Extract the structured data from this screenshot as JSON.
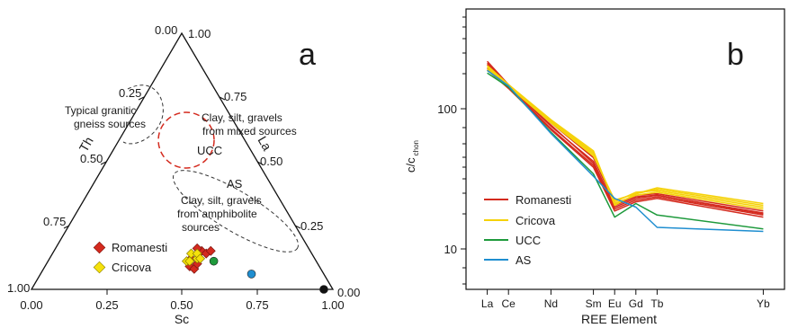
{
  "panel_a": {
    "letter": "a",
    "axis_labels": {
      "th": "Th",
      "la": "La",
      "sc": "Sc"
    },
    "th_ticks": [
      "0.25",
      "0.50",
      "0.75",
      "1.00"
    ],
    "la_ticks": [
      "0.25",
      "0.50",
      "0.75",
      "1.00"
    ],
    "sc_ticks": [
      "0.00",
      "0.25",
      "0.50",
      "0.75",
      "1.00"
    ],
    "apex_top_left": "0.00",
    "bottom_right_zero": "0.00",
    "annotations": {
      "granitic": [
        "Typical granitic",
        "gneiss sources"
      ],
      "mixed": [
        "Clay, silt, gravels",
        "from mixed sources"
      ],
      "amphibolite": [
        "Clay, silt, gravels",
        "from amphibolite",
        "sources"
      ]
    },
    "point_labels": {
      "ucc": "UCC",
      "as": "AS"
    },
    "legend": [
      {
        "label": "Romanesti",
        "color": "#d42a1e"
      },
      {
        "label": "Cricova",
        "color": "#f5e10c"
      }
    ]
  },
  "panel_b": {
    "letter": "b",
    "ylabel": "c/c",
    "ylabel_sub": "chon",
    "xlabel": "REE Element",
    "ytick_labels": [
      "10",
      "100"
    ],
    "legend": [
      {
        "label": "Romanesti",
        "color": "#d42a1e"
      },
      {
        "label": "Cricova",
        "color": "#f5d20a"
      },
      {
        "label": "UCC",
        "color": "#1e9a3c"
      },
      {
        "label": "AS",
        "color": "#1f8ed0"
      }
    ]
  },
  "chart_data": [
    {
      "type": "scatter",
      "subtype": "ternary",
      "components": [
        "Th",
        "La",
        "Sc"
      ],
      "series": [
        {
          "name": "Romanesti",
          "color": "#d42a1e",
          "marker": "diamond",
          "points": [
            {
              "Sc": 0.48,
              "Th": 0.43,
              "La": 0.09
            },
            {
              "Sc": 0.5,
              "Th": 0.42,
              "La": 0.08
            },
            {
              "Sc": 0.47,
              "Th": 0.41,
              "La": 0.12
            },
            {
              "Sc": 0.5,
              "Th": 0.4,
              "La": 0.1
            },
            {
              "Sc": 0.49,
              "Th": 0.36,
              "La": 0.15
            },
            {
              "Sc": 0.47,
              "Th": 0.37,
              "La": 0.16
            },
            {
              "Sc": 0.51,
              "Th": 0.35,
              "La": 0.14
            },
            {
              "Sc": 0.52,
              "Th": 0.33,
              "La": 0.15
            }
          ]
        },
        {
          "name": "Cricova",
          "color": "#f5e10c",
          "marker": "diamond",
          "points": [
            {
              "Sc": 0.46,
              "Th": 0.43,
              "La": 0.11
            },
            {
              "Sc": 0.47,
              "Th": 0.42,
              "La": 0.11
            },
            {
              "Sc": 0.49,
              "Th": 0.39,
              "La": 0.12
            },
            {
              "Sc": 0.46,
              "Th": 0.4,
              "La": 0.14
            },
            {
              "Sc": 0.48,
              "Th": 0.38,
              "La": 0.14
            },
            {
              "Sc": 0.5,
              "Th": 0.38,
              "La": 0.12
            }
          ]
        },
        {
          "name": "UCC",
          "color": "#1e9a3c",
          "marker": "octagon",
          "points": [
            {
              "Sc": 0.55,
              "Th": 0.34,
              "La": 0.11
            }
          ]
        },
        {
          "name": "AS",
          "color": "#1f8ed0",
          "marker": "octagon",
          "points": [
            {
              "Sc": 0.7,
              "Th": 0.24,
              "La": 0.06
            }
          ]
        },
        {
          "name": "",
          "color": "#111111",
          "marker": "octagon",
          "points": [
            {
              "Sc": 0.97,
              "Th": 0.03,
              "La": 0.0
            }
          ]
        }
      ],
      "regions": [
        {
          "label": "Typical granitic gneiss sources",
          "style": "dashed",
          "center": {
            "Sc": 0.35,
            "Th": 0.43,
            "La": 0.22
          }
        },
        {
          "label": "Clay, silt, gravels from mixed sources",
          "style": "dashed circle",
          "color": "#d42a1e",
          "center": {
            "Sc": 0.51,
            "Th": 0.37,
            "La": 0.12
          }
        },
        {
          "label": "Clay, silt, gravels from amphibolite sources",
          "style": "dashed",
          "center": {
            "Sc": 0.72,
            "Th": 0.19,
            "La": 0.09
          }
        }
      ]
    },
    {
      "type": "line",
      "y_scale": "log",
      "ylim": [
        5.6,
        330
      ],
      "categories": [
        "La",
        "Ce",
        "Nd",
        "Sm",
        "Eu",
        "Gd",
        "Tb",
        "Yb"
      ],
      "x": [
        57,
        58,
        60,
        62,
        63,
        64,
        65,
        70
      ],
      "series": [
        {
          "name": "Romanesti",
          "color": "#d42a1e",
          "values": [
            150,
            108,
            60,
            36,
            18.5,
            21,
            22,
            17
          ]
        },
        {
          "name": "Romanesti",
          "color": "#d42a1e",
          "values": [
            140,
            106,
            58,
            34,
            18,
            20.5,
            21.5,
            16.5
          ]
        },
        {
          "name": "Romanesti",
          "color": "#d42a1e",
          "values": [
            154,
            110,
            63,
            38,
            19.5,
            22,
            22.5,
            17.5
          ]
        },
        {
          "name": "Romanesti",
          "color": "#d42a1e",
          "values": [
            136,
            104,
            57,
            33,
            17.5,
            20,
            21,
            16
          ]
        },
        {
          "name": "Romanesti",
          "color": "#d42a1e",
          "values": [
            147,
            107,
            61,
            35,
            19,
            21.5,
            22,
            16.8
          ]
        },
        {
          "name": "Cricova",
          "color": "#f5d20a",
          "values": [
            145,
            110,
            66,
            42,
            19,
            22.5,
            24,
            19
          ]
        },
        {
          "name": "Cricova",
          "color": "#f5d20a",
          "values": [
            138,
            108,
            64,
            40,
            20,
            23,
            23.5,
            18.5
          ]
        },
        {
          "name": "Cricova",
          "color": "#f5d20a",
          "values": [
            142,
            109,
            65,
            41,
            19.5,
            22,
            23,
            18
          ]
        },
        {
          "name": "Cricova",
          "color": "#f5d20a",
          "values": [
            135,
            107,
            63,
            39,
            20.5,
            22.5,
            24.5,
            19.5
          ]
        },
        {
          "name": "UCC",
          "color": "#1e9a3c",
          "values": [
            130,
            106,
            55,
            30,
            16,
            19.5,
            16.5,
            13.5
          ]
        },
        {
          "name": "AS",
          "color": "#1f8ed0",
          "values": [
            135,
            108,
            54,
            29,
            21,
            18.5,
            13.8,
            13
          ]
        }
      ]
    }
  ]
}
